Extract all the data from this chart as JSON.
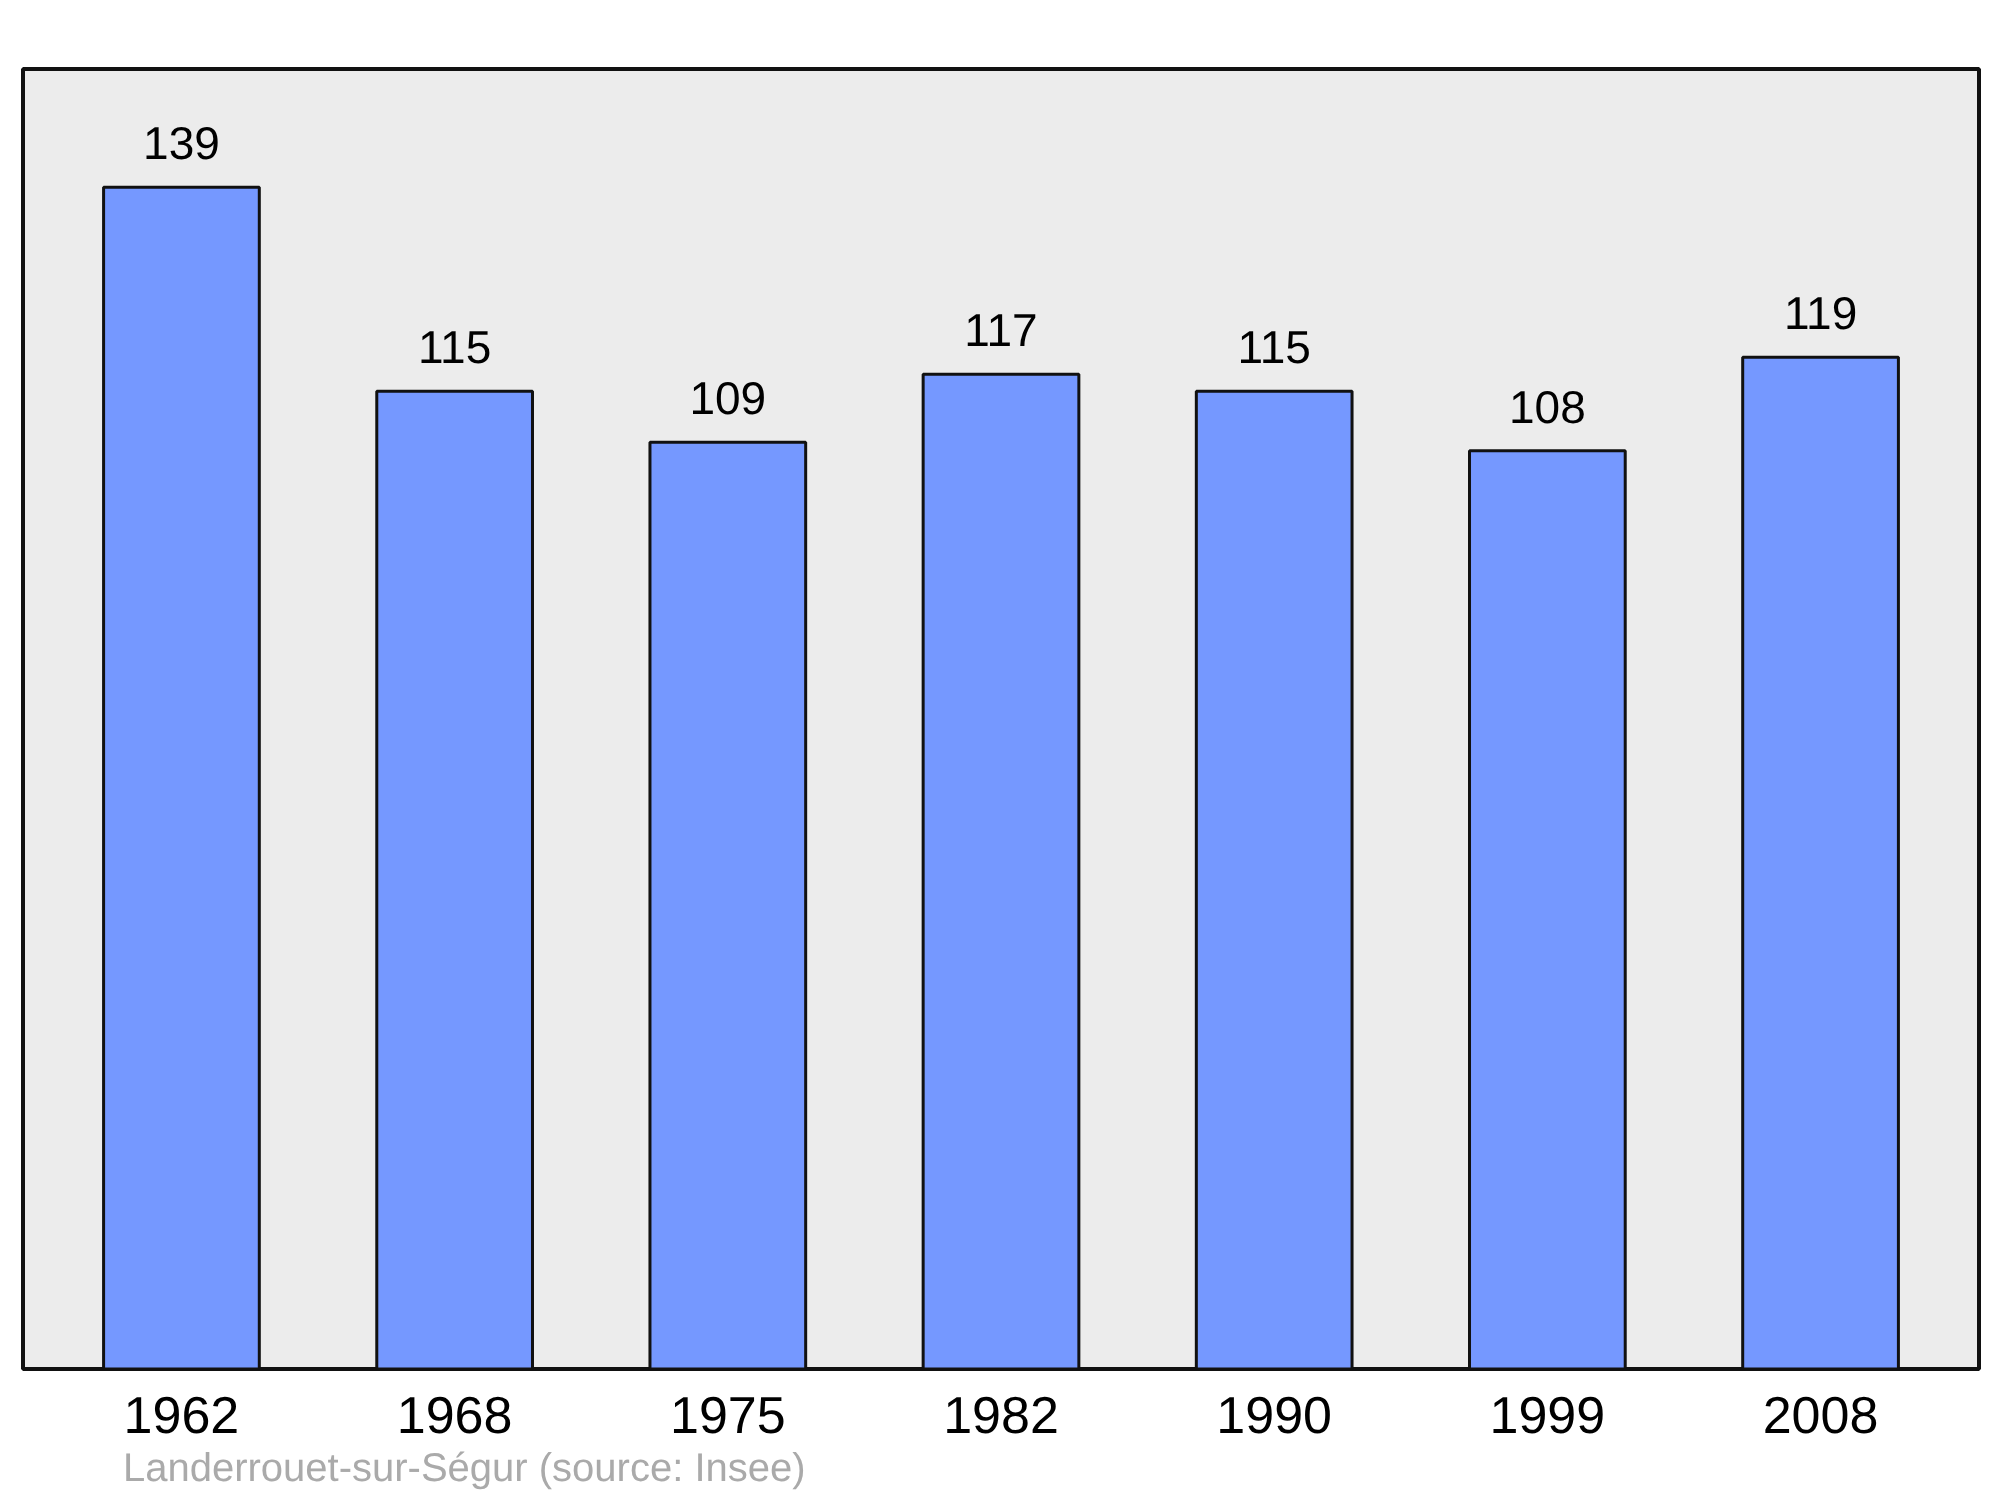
{
  "chart_data": {
    "type": "bar",
    "categories": [
      "1962",
      "1968",
      "1975",
      "1982",
      "1990",
      "1999",
      "2008"
    ],
    "values": [
      139,
      115,
      109,
      117,
      115,
      108,
      119
    ],
    "color": "#7598ff",
    "data_labels": true,
    "annotations": [
      "Landerrouet-sur-Ségur    (source: Insee)"
    ]
  }
}
